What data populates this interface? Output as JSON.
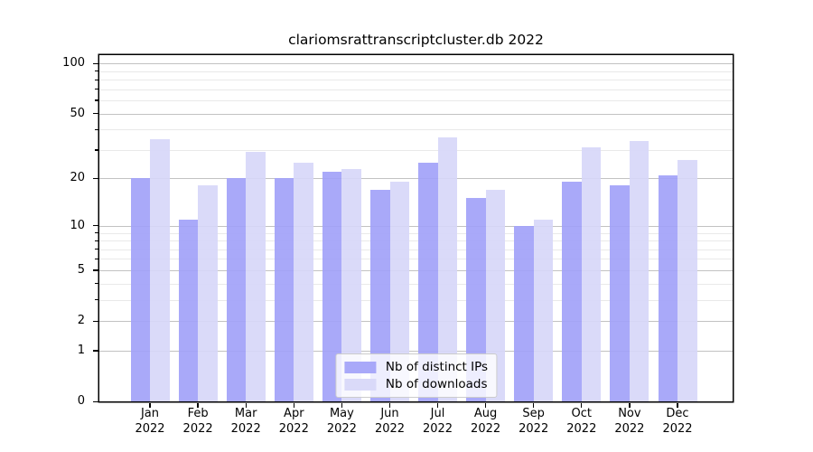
{
  "figure": {
    "background": "#ffffff",
    "spine_color": "#000000",
    "grid_major_color": "#c2c2c2",
    "grid_minor_color": "#e9e9e9"
  },
  "chart_data": {
    "type": "bar",
    "title": "clariomsrattranscriptcluster.db 2022",
    "categories": [
      "Jan 2022",
      "Feb 2022",
      "Mar 2022",
      "Apr 2022",
      "May 2022",
      "Jun 2022",
      "Jul 2022",
      "Aug 2022",
      "Sep 2022",
      "Oct 2022",
      "Nov 2022",
      "Dec 2022"
    ],
    "series": [
      {
        "name": "Nb of distinct IPs",
        "color": "#a2a2f8",
        "values": [
          20,
          11,
          20,
          20,
          22,
          17,
          25,
          15,
          10,
          19,
          18,
          21
        ]
      },
      {
        "name": "Nb of downloads",
        "color": "#d7d7f8",
        "values": [
          35,
          18,
          29,
          25,
          23,
          19,
          36,
          17,
          11,
          31,
          34,
          26
        ]
      }
    ],
    "xlabel": "",
    "ylabel": "",
    "y_scale": "log1p",
    "ylim": [
      0,
      112
    ],
    "y_major_ticks": [
      0,
      1,
      2,
      5,
      10,
      20,
      50,
      100
    ],
    "y_minor_ticks": [
      3,
      4,
      6,
      7,
      8,
      9,
      30,
      40,
      60,
      70,
      80,
      90
    ],
    "grid": "horizontal major+minor",
    "legend_position": "lower center"
  }
}
